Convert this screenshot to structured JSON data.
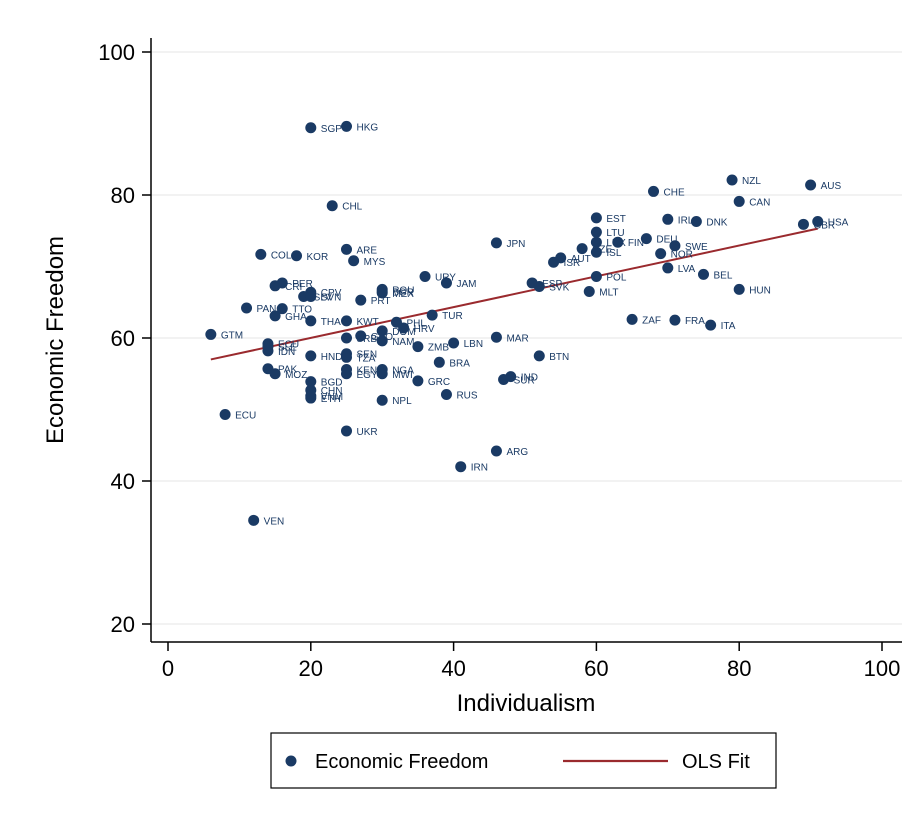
{
  "chart_data": {
    "type": "scatter",
    "title": "",
    "xlabel": "Individualism",
    "ylabel": "Economic Freedom",
    "xlim": [
      -5,
      103
    ],
    "ylim": [
      17,
      102
    ],
    "xticks": [
      0,
      20,
      40,
      60,
      80,
      100
    ],
    "yticks": [
      20,
      40,
      60,
      80,
      100
    ],
    "grid": "horizontal",
    "legend_position": "bottom",
    "colors": {
      "points": "#1a3a64",
      "fit_line": "#9a2a2e"
    },
    "series": [
      {
        "name": "Economic Freedom",
        "kind": "scatter",
        "points": [
          {
            "label": "SGP",
            "x": 20,
            "y": 89.4
          },
          {
            "label": "HKG",
            "x": 25,
            "y": 89.6
          },
          {
            "label": "NZL",
            "x": 79,
            "y": 82.1
          },
          {
            "label": "AUS",
            "x": 90,
            "y": 81.4
          },
          {
            "label": "CHE",
            "x": 68,
            "y": 80.5
          },
          {
            "label": "CAN",
            "x": 80,
            "y": 79.1
          },
          {
            "label": "CHL",
            "x": 23,
            "y": 78.5
          },
          {
            "label": "EST",
            "x": 60,
            "y": 76.8
          },
          {
            "label": "IRL",
            "x": 70,
            "y": 76.6
          },
          {
            "label": "DNK",
            "x": 74,
            "y": 76.3
          },
          {
            "label": "GBR",
            "x": 89,
            "y": 75.9
          },
          {
            "label": "USA",
            "x": 91,
            "y": 76.3
          },
          {
            "label": "LTU",
            "x": 60,
            "y": 74.8
          },
          {
            "label": "DEU",
            "x": 67,
            "y": 73.9
          },
          {
            "label": "LUX",
            "x": 60,
            "y": 73.4
          },
          {
            "label": "FIN",
            "x": 63,
            "y": 73.4
          },
          {
            "label": "JPN",
            "x": 46,
            "y": 73.3
          },
          {
            "label": "SWE",
            "x": 71,
            "y": 72.9
          },
          {
            "label": "ARE",
            "x": 25,
            "y": 72.4
          },
          {
            "label": "CZE",
            "x": 58,
            "y": 72.5
          },
          {
            "label": "ISL",
            "x": 60,
            "y": 72.0
          },
          {
            "label": "NOR",
            "x": 69,
            "y": 71.8
          },
          {
            "label": "COL",
            "x": 13,
            "y": 71.7
          },
          {
            "label": "KOR",
            "x": 18,
            "y": 71.5
          },
          {
            "label": "AUT",
            "x": 55,
            "y": 71.2
          },
          {
            "label": "MYS",
            "x": 26,
            "y": 70.8
          },
          {
            "label": "ISR",
            "x": 54,
            "y": 70.6
          },
          {
            "label": "LVA",
            "x": 70,
            "y": 69.8
          },
          {
            "label": "BEL",
            "x": 75,
            "y": 68.9
          },
          {
            "label": "POL",
            "x": 60,
            "y": 68.6
          },
          {
            "label": "URY",
            "x": 36,
            "y": 68.6
          },
          {
            "label": "JAM",
            "x": 39,
            "y": 67.7
          },
          {
            "label": "PER",
            "x": 16,
            "y": 67.7
          },
          {
            "label": "CRI",
            "x": 15,
            "y": 67.3
          },
          {
            "label": "ESP",
            "x": 51,
            "y": 67.7
          },
          {
            "label": "SVK",
            "x": 52,
            "y": 67.2
          },
          {
            "label": "HUN",
            "x": 80,
            "y": 66.8
          },
          {
            "label": "ROU",
            "x": 30,
            "y": 66.8
          },
          {
            "label": "BGR",
            "x": 30,
            "y": 66.5
          },
          {
            "label": "MEX",
            "x": 30,
            "y": 66.3
          },
          {
            "label": "MLT",
            "x": 59,
            "y": 66.5
          },
          {
            "label": "CPV",
            "x": 20,
            "y": 66.4
          },
          {
            "label": "SLV",
            "x": 19,
            "y": 65.8
          },
          {
            "label": "SVN",
            "x": 20,
            "y": 65.8
          },
          {
            "label": "PRT",
            "x": 27,
            "y": 65.3
          },
          {
            "label": "PAN",
            "x": 11,
            "y": 64.2
          },
          {
            "label": "TTO",
            "x": 16,
            "y": 64.1
          },
          {
            "label": "TUR",
            "x": 37,
            "y": 63.2
          },
          {
            "label": "GHA",
            "x": 15,
            "y": 63.1
          },
          {
            "label": "ZAF",
            "x": 65,
            "y": 62.6
          },
          {
            "label": "FRA",
            "x": 71,
            "y": 62.5
          },
          {
            "label": "THA",
            "x": 20,
            "y": 62.4
          },
          {
            "label": "KWT",
            "x": 25,
            "y": 62.4
          },
          {
            "label": "PHL",
            "x": 32,
            "y": 62.2
          },
          {
            "label": "ITA",
            "x": 76,
            "y": 61.8
          },
          {
            "label": "HRV",
            "x": 33,
            "y": 61.4
          },
          {
            "label": "DOM",
            "x": 30,
            "y": 61.0
          },
          {
            "label": "GTM",
            "x": 6,
            "y": 60.5
          },
          {
            "label": "SRB",
            "x": 25,
            "y": 60.0
          },
          {
            "label": "GEO",
            "x": 27,
            "y": 60.3
          },
          {
            "label": "MAR",
            "x": 46,
            "y": 60.1
          },
          {
            "label": "NAM",
            "x": 30,
            "y": 59.6
          },
          {
            "label": "LBN",
            "x": 40,
            "y": 59.3
          },
          {
            "label": "ECU",
            "x": 14,
            "y": 59.2
          },
          {
            "label": "SLE",
            "x": 14,
            "y": 58.8
          },
          {
            "label": "ZMB",
            "x": 35,
            "y": 58.8
          },
          {
            "label": "IDN",
            "x": 14,
            "y": 58.2
          },
          {
            "label": "SEN",
            "x": 25,
            "y": 57.8
          },
          {
            "label": "TZA",
            "x": 25,
            "y": 57.3
          },
          {
            "label": "HND",
            "x": 20,
            "y": 57.5
          },
          {
            "label": "BTN",
            "x": 52,
            "y": 57.5
          },
          {
            "label": "BRA",
            "x": 38,
            "y": 56.6
          },
          {
            "label": "PAK",
            "x": 14,
            "y": 55.7
          },
          {
            "label": "KEN",
            "x": 25,
            "y": 55.6
          },
          {
            "label": "NGA",
            "x": 30,
            "y": 55.6
          },
          {
            "label": "MOZ",
            "x": 15,
            "y": 55.0
          },
          {
            "label": "EGY",
            "x": 25,
            "y": 55.0
          },
          {
            "label": "MWI",
            "x": 30,
            "y": 55.0
          },
          {
            "label": "IND",
            "x": 48,
            "y": 54.6
          },
          {
            "label": "SUR",
            "x": 47,
            "y": 54.2
          },
          {
            "label": "GRC",
            "x": 35,
            "y": 54.0
          },
          {
            "label": "BGD",
            "x": 20,
            "y": 53.9
          },
          {
            "label": "CHN",
            "x": 20,
            "y": 52.7
          },
          {
            "label": "RUS",
            "x": 39,
            "y": 52.1
          },
          {
            "label": "VNM",
            "x": 20,
            "y": 51.9
          },
          {
            "label": "ETH",
            "x": 20,
            "y": 51.6
          },
          {
            "label": "NPL",
            "x": 30,
            "y": 51.3
          },
          {
            "label": "ECU",
            "x": 8,
            "y": 49.3
          },
          {
            "label": "UKR",
            "x": 25,
            "y": 47.0
          },
          {
            "label": "ARG",
            "x": 46,
            "y": 44.2
          },
          {
            "label": "IRN",
            "x": 41,
            "y": 42.0
          },
          {
            "label": "VEN",
            "x": 12,
            "y": 34.5
          }
        ]
      },
      {
        "name": "OLS Fit",
        "kind": "line",
        "x": [
          6,
          91
        ],
        "y": [
          57.0,
          75.3
        ]
      }
    ]
  }
}
